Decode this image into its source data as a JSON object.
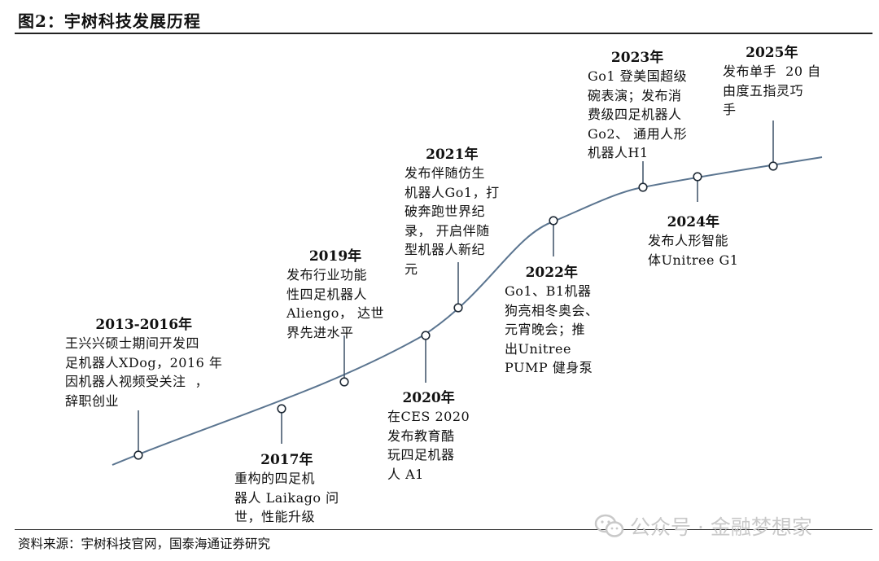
{
  "title": "图2：宇树科技发展历程",
  "source": "资料来源：宇树科技官网，国泰海通证券研究",
  "watermark": "公众号 · 金融梦想家",
  "colors": {
    "curve": "#5b7590",
    "text": "#111111",
    "rule": "#222222"
  },
  "events": [
    {
      "year": "2013-2016年",
      "text": "王兴兴硕士期间开发四\n足机器人XDog，2016 年\n因机器人视频受关注  ，\n辞职创业"
    },
    {
      "year": "2017年",
      "text": "重构的四足机\n器人 Laikago 问\n世，性能升级"
    },
    {
      "year": "2019年",
      "text": "发布行业功能\n性四足机器人\nAliengo， 达世\n界先进水平"
    },
    {
      "year": "2020年",
      "text": "在CES 2020\n发布教育酷\n玩四足机器\n人 A1"
    },
    {
      "year": "2021年",
      "text": "发布伴随仿生\n机器人Go1，打\n破奔跑世界纪\n录， 开启伴随\n型机器人新纪\n元"
    },
    {
      "year": "2022年",
      "text": "Go1、B1机器\n狗亮相冬奥会、\n元宵晚会；推\n出Unitree\nPUMP 健身泵"
    },
    {
      "year": "2023年",
      "text": "Go1 登美国超级\n碗表演；发布消\n费级四足机器人\nGo2、 通用人形\n机器人H1"
    },
    {
      "year": "2024年",
      "text": "发布人形智能\n体Unitree G1"
    },
    {
      "year": "2025年",
      "text": "发布单手  20 自\n由度五指灵巧\n手"
    }
  ]
}
